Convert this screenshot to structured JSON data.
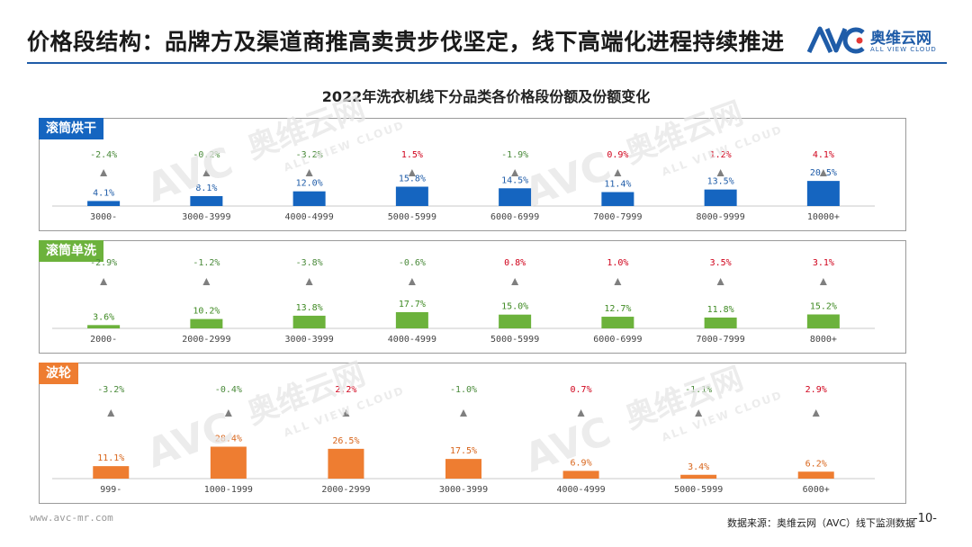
{
  "slide": {
    "title": "价格段结构：品牌方及渠道商推高卖贵步伐坚定，线下高端化进程持续推进"
  },
  "logo": {
    "brand_cn": "奥维云网",
    "brand_en": "ALL VIEW CLOUD"
  },
  "watermark": {
    "brand_cn": "奥维云网",
    "brand_en": "ALL VIEW CLOUD",
    "mark": "AVC"
  },
  "colors": {
    "accent": "#1f5ca8",
    "panel1_bar": "#1565c0",
    "panel2_bar": "#6cb23c",
    "panel3_bar": "#ee7d31",
    "value_label_panel1": "#1f5ca8",
    "value_label_panel2": "#3f8a23",
    "value_label_panel3": "#d8651b",
    "positive_change": "#d0021b",
    "negative_change": "#4a8a3a",
    "triangle": "#7f7f7f"
  },
  "chart_data": [
    {
      "type": "bar",
      "title": "2022年洗衣机线下分品类各价格段份额及份额变化",
      "panel_label": "滚筒烘干",
      "categories": [
        "3000-",
        "3000-3999",
        "4000-4999",
        "5000-5999",
        "6000-6999",
        "7000-7999",
        "8000-9999",
        "10000+"
      ],
      "series": [
        {
          "values": [
            4.1,
            8.1,
            12.0,
            15.8,
            14.5,
            11.4,
            13.5,
            20.5
          ],
          "value_labels": [
            "4.1%",
            "8.1%",
            "12.0%",
            "15.8%",
            "14.5%",
            "11.4%",
            "13.5%",
            "20.5%"
          ]
        },
        {
          "values": [
            -2.4,
            -0.2,
            -3.2,
            1.5,
            -1.9,
            0.9,
            1.2,
            4.1
          ],
          "value_labels": [
            "-2.4%",
            "-0.2%",
            "-3.2%",
            "1.5%",
            "-1.9%",
            "0.9%",
            "1.2%",
            "4.1%"
          ]
        }
      ]
    },
    {
      "type": "bar",
      "panel_label": "滚筒单洗",
      "categories": [
        "2000-",
        "2000-2999",
        "3000-3999",
        "4000-4999",
        "5000-5999",
        "6000-6999",
        "7000-7999",
        "8000+"
      ],
      "series": [
        {
          "values": [
            3.6,
            10.2,
            13.8,
            17.7,
            15.0,
            12.7,
            11.8,
            15.2
          ],
          "value_labels": [
            "3.6%",
            "10.2%",
            "13.8%",
            "17.7%",
            "15.0%",
            "12.7%",
            "11.8%",
            "15.2%"
          ]
        },
        {
          "values": [
            -2.9,
            -1.2,
            -3.8,
            -0.6,
            0.8,
            1.0,
            3.5,
            3.1
          ],
          "value_labels": [
            "-2.9%",
            "-1.2%",
            "-3.8%",
            "-0.6%",
            "0.8%",
            "1.0%",
            "3.5%",
            "3.1%"
          ]
        }
      ]
    },
    {
      "type": "bar",
      "panel_label": "波轮",
      "categories": [
        "999-",
        "1000-1999",
        "2000-2999",
        "3000-3999",
        "4000-4999",
        "5000-5999",
        "6000+"
      ],
      "series": [
        {
          "values": [
            11.1,
            28.4,
            26.5,
            17.5,
            6.9,
            3.4,
            6.2
          ],
          "value_labels": [
            "11.1%",
            "28.4%",
            "26.5%",
            "17.5%",
            "6.9%",
            "3.4%",
            "6.2%"
          ]
        },
        {
          "values": [
            -3.2,
            -0.4,
            2.2,
            -1.0,
            0.7,
            -1.1,
            2.9
          ],
          "value_labels": [
            "-3.2%",
            "-0.4%",
            "2.2%",
            "-1.0%",
            "0.7%",
            "-1.1%",
            "2.9%"
          ]
        }
      ]
    }
  ],
  "footer": {
    "url": "www.avc-mr.com",
    "source": "数据来源：奥维云网（AVC）线下监测数据",
    "page_number": "-10-"
  }
}
